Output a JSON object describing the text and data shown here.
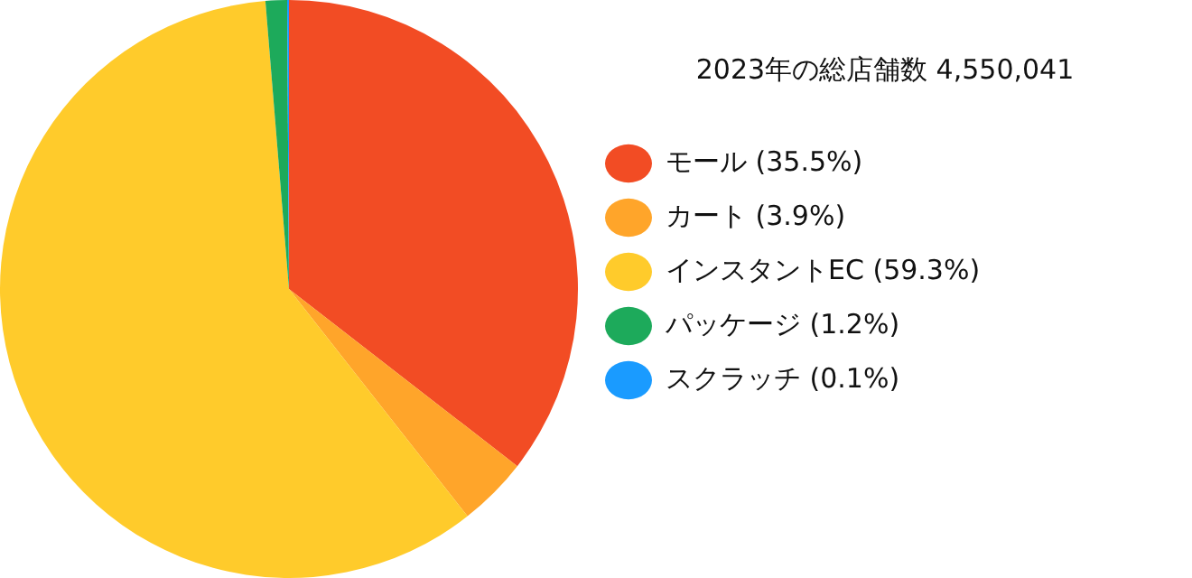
{
  "chart_data": {
    "type": "pie",
    "legend_title": "2023年の総店舗数 4,550,041",
    "legend": "right",
    "categories": [
      "モール (35.5%)",
      "カート (3.9%)",
      "インスタントEC (59.3%)",
      "パッケージ (1.2%)",
      "スクラッチ (0.1%)"
    ],
    "values": [
      35.5,
      3.9,
      59.3,
      1.2,
      0.1
    ],
    "colors": [
      "#f24c24",
      "#ffa52a",
      "#ffcb2b",
      "#1daa5b",
      "#1a9bff"
    ]
  }
}
